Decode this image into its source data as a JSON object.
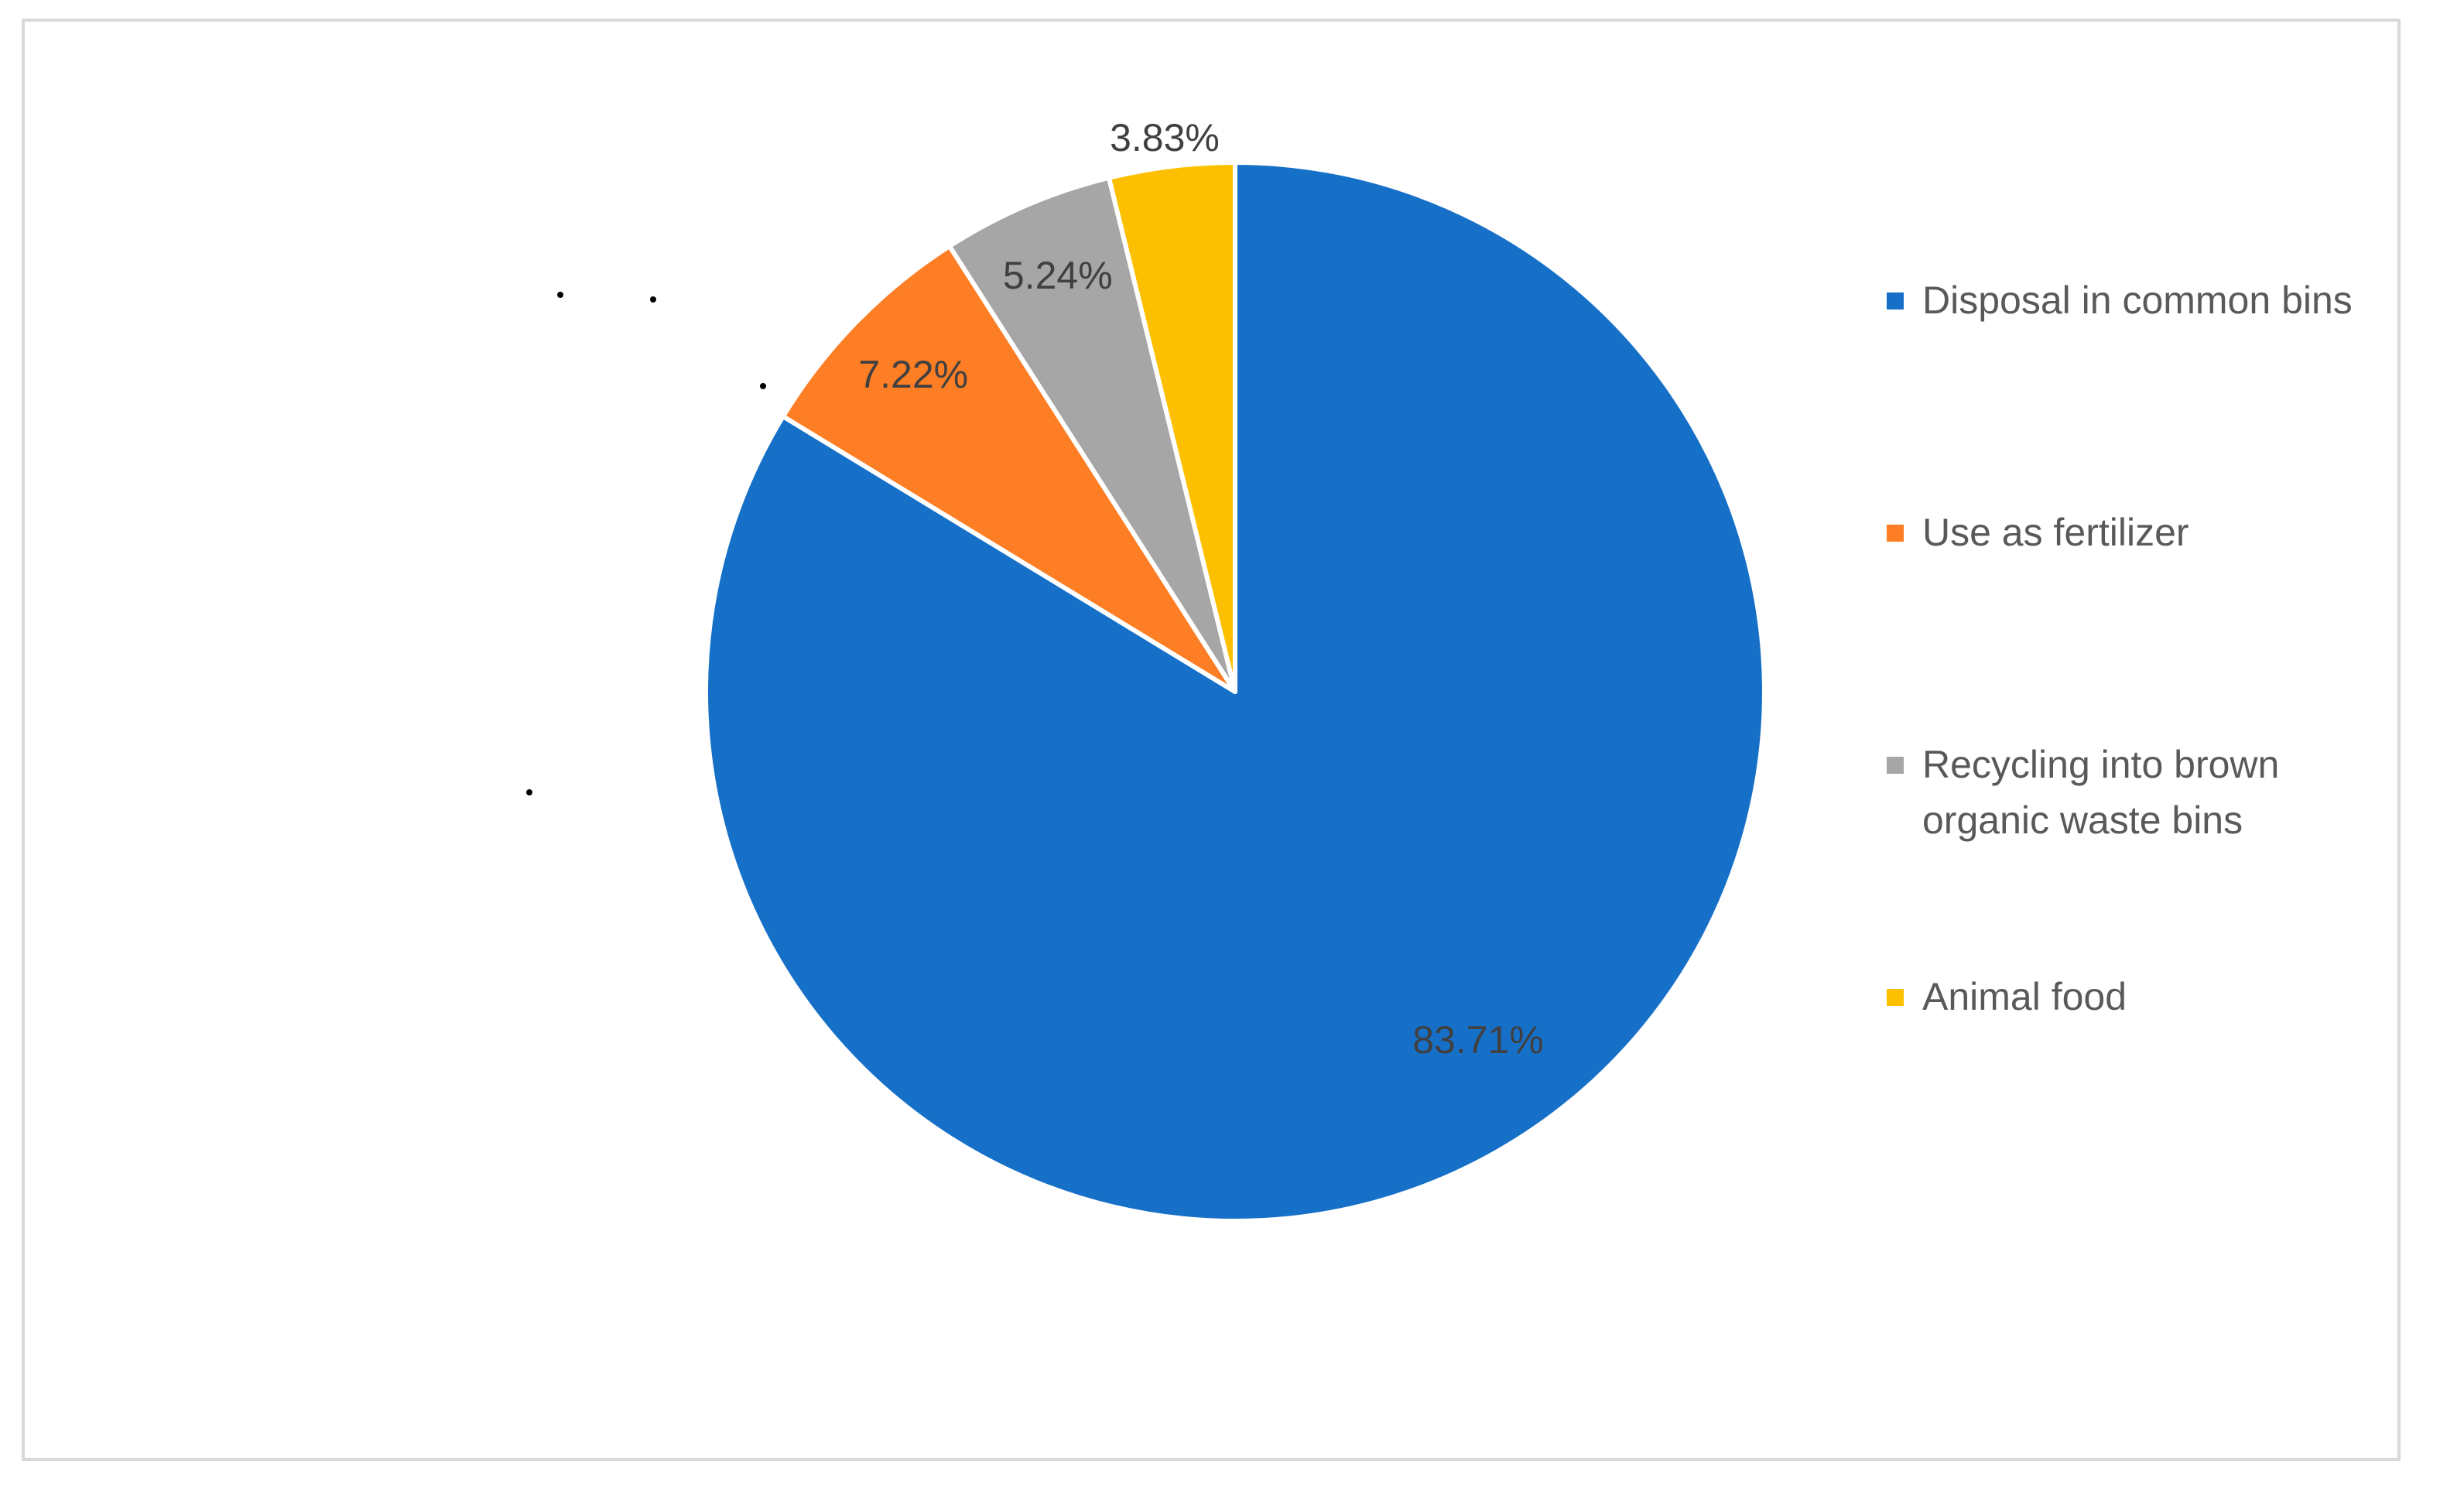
{
  "chart_data": {
    "type": "pie",
    "categories": [
      "Disposal in common bins",
      "Use as fertilizer",
      "Recycling into brown organic waste bins",
      "Animal food"
    ],
    "values": [
      83.71,
      7.22,
      5.24,
      3.83
    ],
    "data_labels": [
      "83.71%",
      "7.22%",
      "5.24%",
      "3.83%"
    ],
    "colors": [
      "#1770c8",
      "#fd7e24",
      "#a6a6a6",
      "#fdc000"
    ],
    "unit": "%",
    "start_angle": "12 o'clock",
    "direction": "clockwise",
    "legend": "right"
  }
}
